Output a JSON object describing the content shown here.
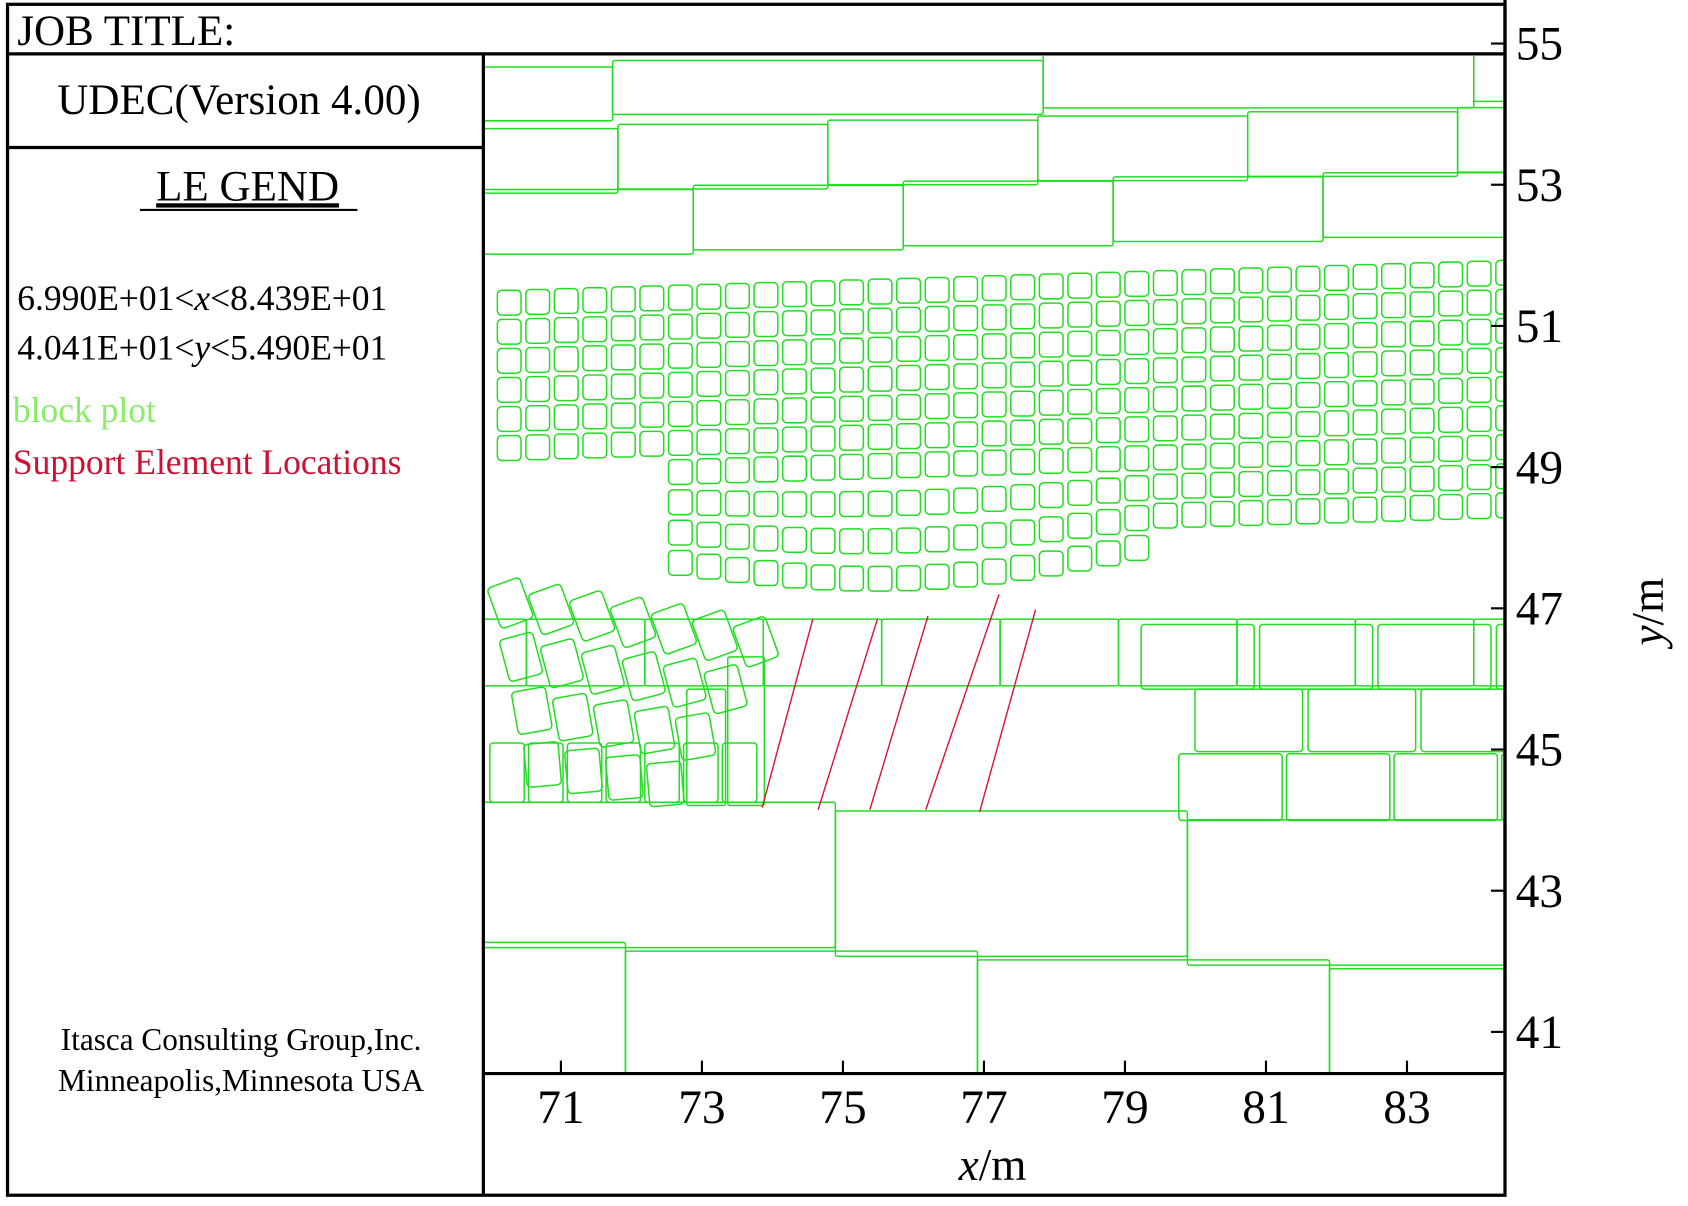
{
  "chart_data": {
    "type": "block-plot",
    "job_title": "JOB TITLE:",
    "software": "UDEC(Version 4.00)",
    "legend_title": "LE GEND",
    "x_range": [
      "6.990E+01<",
      "x",
      "<8.439E+01"
    ],
    "y_range": [
      "4.041E+01<",
      "y",
      "<5.490E+01"
    ],
    "legend": [
      {
        "name": "block plot",
        "color": "#88ee66"
      },
      {
        "name": "Support Element Locations",
        "color": "#cc1133"
      }
    ],
    "credits": [
      "Itasca Consulting Group,Inc.",
      "Minneapolis,Minnesota USA"
    ],
    "xlabel": [
      "x",
      "/m"
    ],
    "ylabel": [
      "y",
      "/m"
    ],
    "xlim": [
      69.9,
      84.39
    ],
    "ylim": [
      40.41,
      54.9
    ],
    "xticks": [
      71,
      73,
      75,
      77,
      79,
      81,
      83
    ],
    "yticks": [
      41,
      43,
      45,
      47,
      49,
      51,
      53,
      55
    ]
  }
}
